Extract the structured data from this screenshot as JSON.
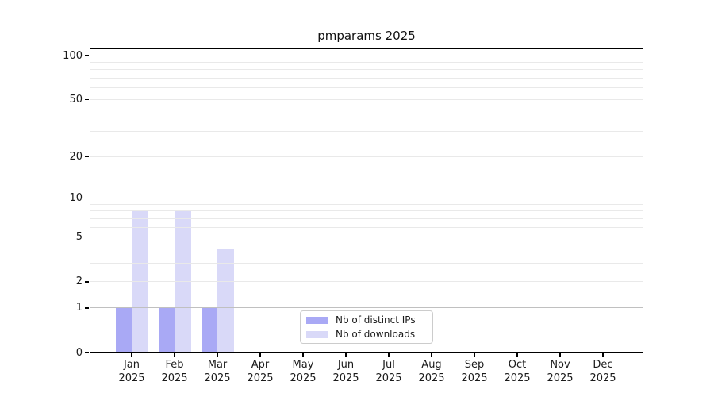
{
  "figure": {
    "title": "pmparams 2025"
  },
  "chart_data": {
    "type": "bar",
    "title": "pmparams 2025",
    "categories": [
      "Jan",
      "Feb",
      "Mar",
      "Apr",
      "May",
      "Jun",
      "Jul",
      "Aug",
      "Sep",
      "Oct",
      "Nov",
      "Dec"
    ],
    "category_year": "2025",
    "series": [
      {
        "name": "Nb of distinct IPs",
        "color": "#a9a9f5",
        "values": [
          1,
          1,
          1,
          0,
          0,
          0,
          0,
          0,
          0,
          0,
          0,
          0
        ]
      },
      {
        "name": "Nb of downloads",
        "color": "#d9d9f8",
        "values": [
          8,
          8,
          4,
          0,
          0,
          0,
          0,
          0,
          0,
          0,
          0,
          0
        ]
      }
    ],
    "xlabel": "",
    "ylabel": "",
    "y_axis": {
      "ticks": [
        0,
        1,
        2,
        5,
        10,
        20,
        50,
        100
      ],
      "range": [
        0,
        100
      ],
      "scale": "log10(1+v)",
      "major_gridlines": [
        1,
        10,
        100
      ],
      "minor_gridlines": [
        2,
        3,
        4,
        5,
        6,
        7,
        8,
        9,
        20,
        30,
        40,
        50,
        60,
        70,
        80,
        90
      ]
    },
    "legend": {
      "position": "lower center",
      "entries": [
        "Nb of distinct IPs",
        "Nb of downloads"
      ]
    },
    "grid": "horizontal-only"
  },
  "colors": {
    "background": "#ffffff",
    "axis": "#000000",
    "text": "#1a1a1a",
    "major_gridline": "#c0c0c0",
    "minor_gridline": "#e9e9e9",
    "legend_border": "#cccccc"
  }
}
